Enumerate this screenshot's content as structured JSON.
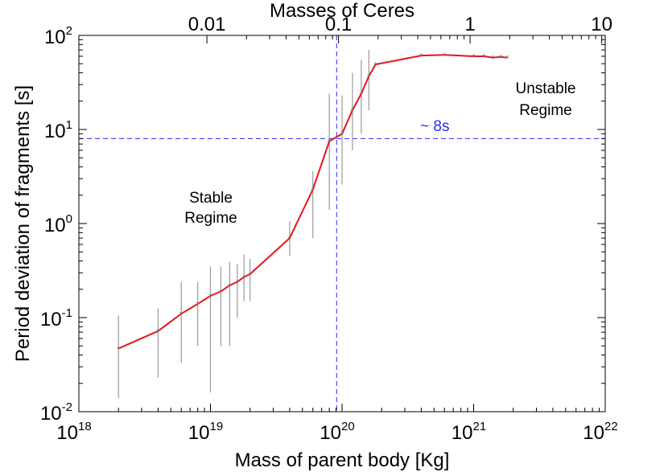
{
  "chart_data": {
    "type": "line",
    "xscale": "log",
    "yscale": "log",
    "xlabel": "Mass of parent body [Kg]",
    "ylabel": "Period deviation of fragments [s]",
    "top_axis_title": "Masses of Ceres",
    "xlim": [
      1e+18,
      1e+22
    ],
    "ylim": [
      0.01,
      100
    ],
    "x_ticks": [
      {
        "value": 1e+18,
        "base": "10",
        "exp": "18"
      },
      {
        "value": 1e+19,
        "base": "10",
        "exp": "19"
      },
      {
        "value": 1e+20,
        "base": "10",
        "exp": "20"
      },
      {
        "value": 1e+21,
        "base": "10",
        "exp": "21"
      },
      {
        "value": 1e+22,
        "base": "10",
        "exp": "22"
      }
    ],
    "y_ticks": [
      {
        "value": 0.01,
        "base": "10",
        "exp": "-2"
      },
      {
        "value": 0.1,
        "base": "10",
        "exp": "-1"
      },
      {
        "value": 1,
        "base": "10",
        "exp": "0"
      },
      {
        "value": 10,
        "base": "10",
        "exp": "1"
      },
      {
        "value": 100,
        "base": "10",
        "exp": "2"
      }
    ],
    "top_ticks": [
      {
        "value": 9.4e+18,
        "label": "0.01"
      },
      {
        "value": 9.4e+19,
        "label": "0.1"
      },
      {
        "value": 9.4e+20,
        "label": "1"
      },
      {
        "value": 9.4e+21,
        "label": "10"
      }
    ],
    "series": [
      {
        "name": "Period deviation",
        "color": "#e8141e",
        "x": [
          2e+18,
          4e+18,
          6e+18,
          8e+18,
          1e+19,
          1.2e+19,
          1.4e+19,
          1.6e+19,
          1.8e+19,
          2e+19,
          4e+19,
          6e+19,
          8e+19,
          1e+20,
          1.2e+20,
          1.4e+20,
          1.6e+20,
          1.8e+20,
          4e+20,
          6e+20,
          1e+21,
          1.2e+21,
          1.4e+21,
          1.6e+21,
          1.8e+21
        ],
        "y": [
          0.047,
          0.072,
          0.11,
          0.14,
          0.17,
          0.19,
          0.22,
          0.24,
          0.27,
          0.29,
          0.7,
          2.3,
          7.5,
          9,
          16,
          24,
          37,
          49,
          61,
          62,
          60,
          60,
          58,
          59,
          58
        ],
        "err_low": [
          0.014,
          0.023,
          0.033,
          0.05,
          0.016,
          0.05,
          0.05,
          0.1,
          0.15,
          0.15,
          0.45,
          0.7,
          1.4,
          2.6,
          6,
          9,
          16,
          49,
          61,
          62,
          60,
          60,
          58,
          59,
          58
        ],
        "err_high": [
          0.105,
          0.125,
          0.24,
          0.24,
          0.35,
          0.35,
          0.39,
          0.37,
          0.47,
          0.42,
          1.05,
          3.6,
          24,
          23,
          40,
          55,
          70,
          49,
          61,
          62,
          60,
          60,
          58,
          59,
          58
        ]
      }
    ],
    "reference_lines": {
      "color": "#2a2aff",
      "vertical_x": 9.1e+19,
      "horizontal_y": 8
    },
    "annotations": {
      "threshold": "~ 8s",
      "stable_line1": "Stable",
      "stable_line2": "Regime",
      "unstable_line1": "Unstable",
      "unstable_line2": "Regime"
    }
  }
}
